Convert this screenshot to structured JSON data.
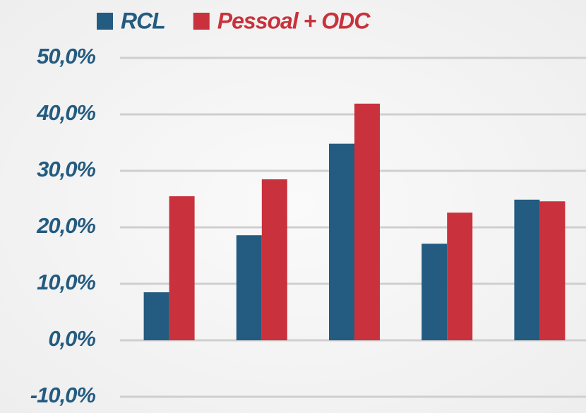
{
  "chart_data": {
    "type": "bar",
    "categories": [
      null,
      null,
      null,
      null,
      null
    ],
    "series": [
      {
        "name": "RCL",
        "color": "#245b80",
        "values": [
          8.5,
          18.6,
          34.8,
          17.1,
          24.9
        ]
      },
      {
        "name": "Pessoal + ODC",
        "color": "#c9323c",
        "values": [
          25.5,
          28.5,
          41.9,
          22.6,
          24.6
        ]
      }
    ],
    "ylim": [
      -10,
      50
    ],
    "yticks": [
      {
        "value": -10,
        "label": "-10,0%"
      },
      {
        "value": 0,
        "label": "0,0%"
      },
      {
        "value": 10,
        "label": "10,0%"
      },
      {
        "value": 20,
        "label": "20,0%"
      },
      {
        "value": 30,
        "label": "30,0%"
      },
      {
        "value": 40,
        "label": "40,0%"
      },
      {
        "value": 50,
        "label": "50,0%"
      }
    ],
    "grid": true,
    "legend": "top-left"
  }
}
